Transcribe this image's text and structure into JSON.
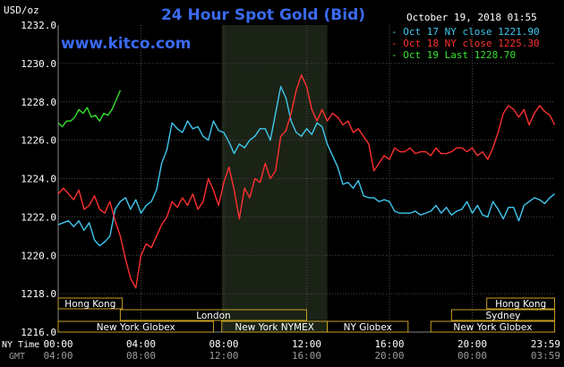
{
  "header": {
    "currency": "USD/oz",
    "title": "24 Hour Spot Gold (Bid)",
    "datetime": "October 19, 2018 01:55",
    "site": "www.kitco.com"
  },
  "legend": [
    {
      "text": "- Oct 17 NY close 1221.90",
      "color": "#3fc8ef"
    },
    {
      "text": "- Oct 18 NY close 1225.30",
      "color": "#ff3030"
    },
    {
      "text": "- Oct 19 Last 1228.70",
      "color": "#36e12f"
    }
  ],
  "axis": {
    "y_ticks": [
      "1232.0",
      "1230.0",
      "1228.0",
      "1226.0",
      "1224.0",
      "1222.0",
      "1220.0",
      "1218.0",
      "1216.0"
    ],
    "x_ticks_ny": [
      "00:00",
      "04:00",
      "08:00",
      "12:00",
      "16:00",
      "20:00",
      "23:59"
    ],
    "x_ticks_gmt": [
      "04:00",
      "08:00",
      "12:00",
      "16:00",
      "20:00",
      "00:00",
      "03:59"
    ],
    "ny_label": "NY Time",
    "gmt_label": "GMT"
  },
  "sessions": [
    {
      "label": "Hong Kong",
      "row": 0,
      "start": 0.0,
      "end": 3.1
    },
    {
      "label": "London",
      "row": 1,
      "start": 3.0,
      "end": 12.0
    },
    {
      "label": "New York Globex",
      "row": 2,
      "start": 0.0,
      "end": 7.5
    },
    {
      "label": "New York NYMEX",
      "row": 2,
      "start": 7.9,
      "end": 13.0
    },
    {
      "label": "NY Globex",
      "row": 2,
      "start": 13.0,
      "end": 16.9
    },
    {
      "label": "Hong Kong",
      "row": 0,
      "start": 20.7,
      "end": 23.98
    },
    {
      "label": "Sydney",
      "row": 1,
      "start": 19.0,
      "end": 23.98
    },
    {
      "label": "New York Globex",
      "row": 2,
      "start": 18.0,
      "end": 23.98
    }
  ],
  "colors": {
    "background": "#000000",
    "plot_bg": "#000000",
    "grid": "#4a4a4a",
    "nymex_shade": "#1b2316",
    "session_box": "#c8a020",
    "axis_text": "#ffffff",
    "title": "#3a6af0"
  },
  "chart_data": {
    "type": "line",
    "title": "24 Hour Spot Gold (Bid)",
    "ylabel": "USD/oz",
    "xlabel": "",
    "ylim": [
      1216.0,
      1232.0
    ],
    "xlim": [
      0,
      24
    ],
    "shaded_region": [
      7.9,
      13.0
    ],
    "series": [
      {
        "name": "Oct 17 NY close 1221.90",
        "color": "#3fc8ef",
        "x": [
          0.0,
          0.25,
          0.5,
          0.75,
          1.0,
          1.25,
          1.5,
          1.75,
          2.0,
          2.25,
          2.5,
          2.75,
          3.0,
          3.25,
          3.5,
          3.75,
          4.0,
          4.25,
          4.5,
          4.75,
          5.0,
          5.25,
          5.5,
          5.75,
          6.0,
          6.25,
          6.5,
          6.75,
          7.0,
          7.25,
          7.5,
          7.75,
          8.0,
          8.25,
          8.5,
          8.75,
          9.0,
          9.25,
          9.5,
          9.75,
          10.0,
          10.25,
          10.5,
          10.75,
          11.0,
          11.25,
          11.5,
          11.75,
          12.0,
          12.25,
          12.5,
          12.75,
          13.0,
          13.25,
          13.5,
          13.75,
          14.0,
          14.25,
          14.5,
          14.75,
          15.0,
          15.25,
          15.5,
          15.75,
          16.0,
          16.25,
          16.5,
          16.75,
          17.0,
          17.25,
          17.5,
          17.75,
          18.0,
          18.25,
          18.5,
          18.75,
          19.0,
          19.25,
          19.5,
          19.75,
          20.0,
          20.25,
          20.5,
          20.75,
          21.0,
          21.25,
          21.5,
          21.75,
          22.0,
          22.25,
          22.5,
          22.75,
          23.0,
          23.25,
          23.5,
          23.75,
          23.98
        ],
        "values": [
          1221.6,
          1221.7,
          1221.8,
          1221.5,
          1221.8,
          1221.3,
          1221.7,
          1220.8,
          1220.5,
          1220.7,
          1221.0,
          1222.4,
          1222.8,
          1223.0,
          1222.4,
          1222.9,
          1222.2,
          1222.6,
          1222.8,
          1223.4,
          1224.8,
          1225.5,
          1226.9,
          1226.6,
          1226.4,
          1227.0,
          1226.6,
          1226.7,
          1226.2,
          1226.0,
          1227.0,
          1226.5,
          1226.4,
          1225.9,
          1225.3,
          1225.8,
          1225.6,
          1226.0,
          1226.2,
          1226.6,
          1226.6,
          1226.0,
          1227.4,
          1228.8,
          1228.2,
          1227.0,
          1226.4,
          1226.2,
          1226.6,
          1226.3,
          1226.9,
          1226.7,
          1225.8,
          1225.2,
          1224.6,
          1223.7,
          1223.8,
          1223.5,
          1223.9,
          1223.1,
          1223.0,
          1223.0,
          1222.8,
          1222.9,
          1222.8,
          1222.3,
          1222.2,
          1222.2,
          1222.2,
          1222.3,
          1222.1,
          1222.2,
          1222.3,
          1222.6,
          1222.2,
          1222.5,
          1222.1,
          1222.3,
          1222.4,
          1222.8,
          1222.2,
          1222.6,
          1222.1,
          1222.0,
          1222.8,
          1222.4,
          1221.9,
          1222.5,
          1222.5,
          1221.8,
          1222.6,
          1222.8,
          1223.0,
          1222.9,
          1222.7,
          1223.0,
          1223.2
        ]
      },
      {
        "name": "Oct 18 NY close 1225.30",
        "color": "#ff3030",
        "x": [
          0.0,
          0.25,
          0.5,
          0.75,
          1.0,
          1.25,
          1.5,
          1.75,
          2.0,
          2.25,
          2.5,
          2.75,
          3.0,
          3.25,
          3.5,
          3.75,
          4.0,
          4.25,
          4.5,
          4.75,
          5.0,
          5.25,
          5.5,
          5.75,
          6.0,
          6.25,
          6.5,
          6.75,
          7.0,
          7.25,
          7.5,
          7.75,
          8.0,
          8.25,
          8.5,
          8.75,
          9.0,
          9.25,
          9.5,
          9.75,
          10.0,
          10.25,
          10.5,
          10.75,
          11.0,
          11.25,
          11.5,
          11.75,
          12.0,
          12.25,
          12.5,
          12.75,
          13.0,
          13.25,
          13.5,
          13.75,
          14.0,
          14.25,
          14.5,
          14.75,
          15.0,
          15.25,
          15.5,
          15.75,
          16.0,
          16.25,
          16.5,
          16.75,
          17.0,
          17.25,
          17.5,
          17.75,
          18.0,
          18.25,
          18.5,
          18.75,
          19.0,
          19.25,
          19.5,
          19.75,
          20.0,
          20.25,
          20.5,
          20.75,
          21.0,
          21.25,
          21.5,
          21.75,
          22.0,
          22.25,
          22.5,
          22.75,
          23.0,
          23.25,
          23.5,
          23.75,
          23.98
        ],
        "values": [
          1223.2,
          1223.5,
          1223.2,
          1222.9,
          1223.4,
          1222.4,
          1222.6,
          1223.1,
          1222.4,
          1222.2,
          1222.8,
          1221.8,
          1221.0,
          1219.8,
          1218.8,
          1218.3,
          1220.0,
          1220.6,
          1220.4,
          1221.0,
          1221.6,
          1222.0,
          1222.8,
          1222.5,
          1223.0,
          1222.6,
          1223.2,
          1222.4,
          1222.8,
          1224.0,
          1223.4,
          1222.6,
          1223.8,
          1224.6,
          1223.4,
          1221.9,
          1223.5,
          1223.0,
          1224.0,
          1223.8,
          1224.8,
          1224.0,
          1224.4,
          1226.2,
          1226.5,
          1227.4,
          1228.6,
          1229.4,
          1228.8,
          1227.6,
          1227.0,
          1227.6,
          1227.0,
          1227.4,
          1227.2,
          1226.8,
          1227.0,
          1226.4,
          1226.6,
          1226.2,
          1225.8,
          1224.4,
          1224.8,
          1225.2,
          1225.0,
          1225.6,
          1225.4,
          1225.4,
          1225.6,
          1225.3,
          1225.4,
          1225.4,
          1225.2,
          1225.6,
          1225.3,
          1225.3,
          1225.4,
          1225.6,
          1225.6,
          1225.4,
          1225.6,
          1225.2,
          1225.4,
          1225.0,
          1225.6,
          1226.4,
          1227.4,
          1227.8,
          1227.6,
          1227.2,
          1227.6,
          1226.8,
          1227.4,
          1227.8,
          1227.5,
          1227.3,
          1226.8
        ]
      },
      {
        "name": "Oct 19 Last 1228.70",
        "color": "#36e12f",
        "x": [
          0.0,
          0.2,
          0.4,
          0.6,
          0.8,
          1.0,
          1.2,
          1.4,
          1.6,
          1.8,
          2.0,
          2.2,
          2.4,
          2.6,
          2.8,
          3.0
        ],
        "values": [
          1226.9,
          1226.7,
          1227.0,
          1227.0,
          1227.2,
          1227.6,
          1227.4,
          1227.7,
          1227.2,
          1227.3,
          1227.0,
          1227.4,
          1227.3,
          1227.6,
          1228.1,
          1228.6
        ]
      }
    ]
  }
}
